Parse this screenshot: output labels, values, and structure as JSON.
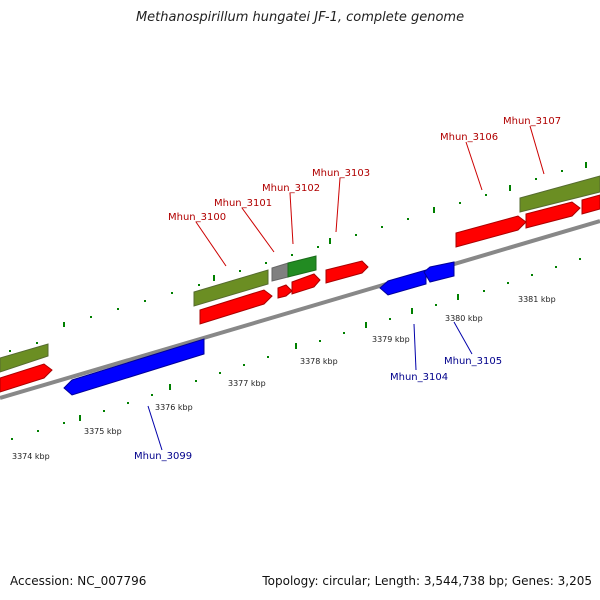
{
  "title": "Methanospirillum hungatei JF-1, complete genome",
  "footer": {
    "accession": "Accession: NC_007796",
    "summary": "Topology: circular; Length: 3,544,738 bp; Genes: 3,205"
  },
  "colors": {
    "forward_cds": "#ff0000",
    "reverse_cds": "#0000ff",
    "gene_olive": "#6b8e23",
    "gene_green": "#228b22",
    "gene_grey": "#808080",
    "backbone": "#888888",
    "forward_label": "#b00000",
    "reverse_label": "#00008b",
    "tick_green": "#008000"
  },
  "scale_labels": [
    "3374 kbp",
    "3375 kbp",
    "3376 kbp",
    "3377 kbp",
    "3378 kbp",
    "3379 kbp",
    "3380 kbp",
    "3381 kbp"
  ],
  "genes_forward": [
    "Mhun_3100",
    "Mhun_3101",
    "Mhun_3102",
    "Mhun_3103",
    "Mhun_3106",
    "Mhun_3107"
  ],
  "genes_reverse": [
    "Mhun_3099",
    "Mhun_3104",
    "Mhun_3105"
  ]
}
